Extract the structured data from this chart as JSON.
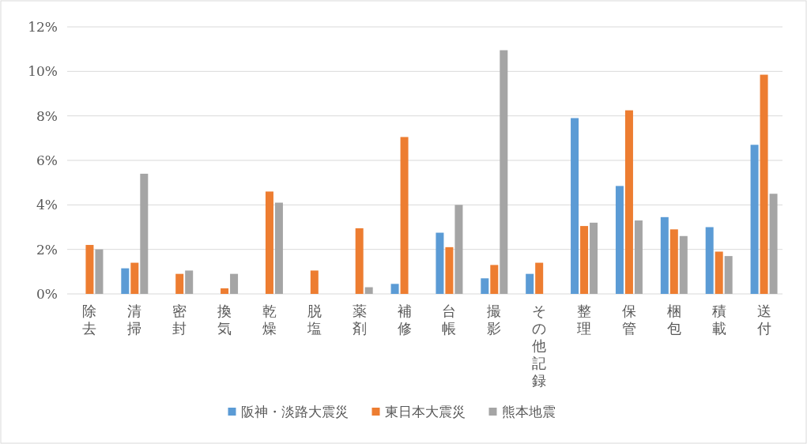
{
  "chart_data": {
    "type": "bar",
    "categories": [
      "除去",
      "清掃",
      "密封",
      "換気",
      "乾燥",
      "脱塩",
      "薬剤",
      "補修",
      "台帳",
      "撮影",
      "その他記録",
      "整理",
      "保管",
      "梱包",
      "積載",
      "送付"
    ],
    "series": [
      {
        "name": "阪神・淡路大震災",
        "color": "#5b9bd5",
        "values": [
          null,
          1.15,
          null,
          null,
          null,
          null,
          null,
          0.45,
          2.75,
          0.7,
          0.9,
          7.9,
          4.85,
          3.45,
          3.0,
          6.7
        ]
      },
      {
        "name": "東日本大震災",
        "color": "#ed7d31",
        "values": [
          2.2,
          1.4,
          0.9,
          0.25,
          4.6,
          1.05,
          2.95,
          7.05,
          2.1,
          1.3,
          1.4,
          3.05,
          8.25,
          2.9,
          1.9,
          9.85
        ]
      },
      {
        "name": "熊本地震",
        "color": "#a5a5a5",
        "values": [
          2.0,
          5.4,
          1.05,
          0.9,
          4.1,
          null,
          0.3,
          null,
          4.0,
          10.95,
          null,
          3.2,
          3.3,
          2.6,
          1.7,
          4.5
        ]
      }
    ],
    "ylim": [
      0,
      12
    ],
    "yticks": [
      {
        "value": 0,
        "label": "0%"
      },
      {
        "value": 2,
        "label": "2%"
      },
      {
        "value": 4,
        "label": "4%"
      },
      {
        "value": 6,
        "label": "6%"
      },
      {
        "value": 8,
        "label": "8%"
      },
      {
        "value": 10,
        "label": "10%"
      },
      {
        "value": 12,
        "label": "12%"
      }
    ],
    "grid": "y",
    "legend": "bottom"
  }
}
